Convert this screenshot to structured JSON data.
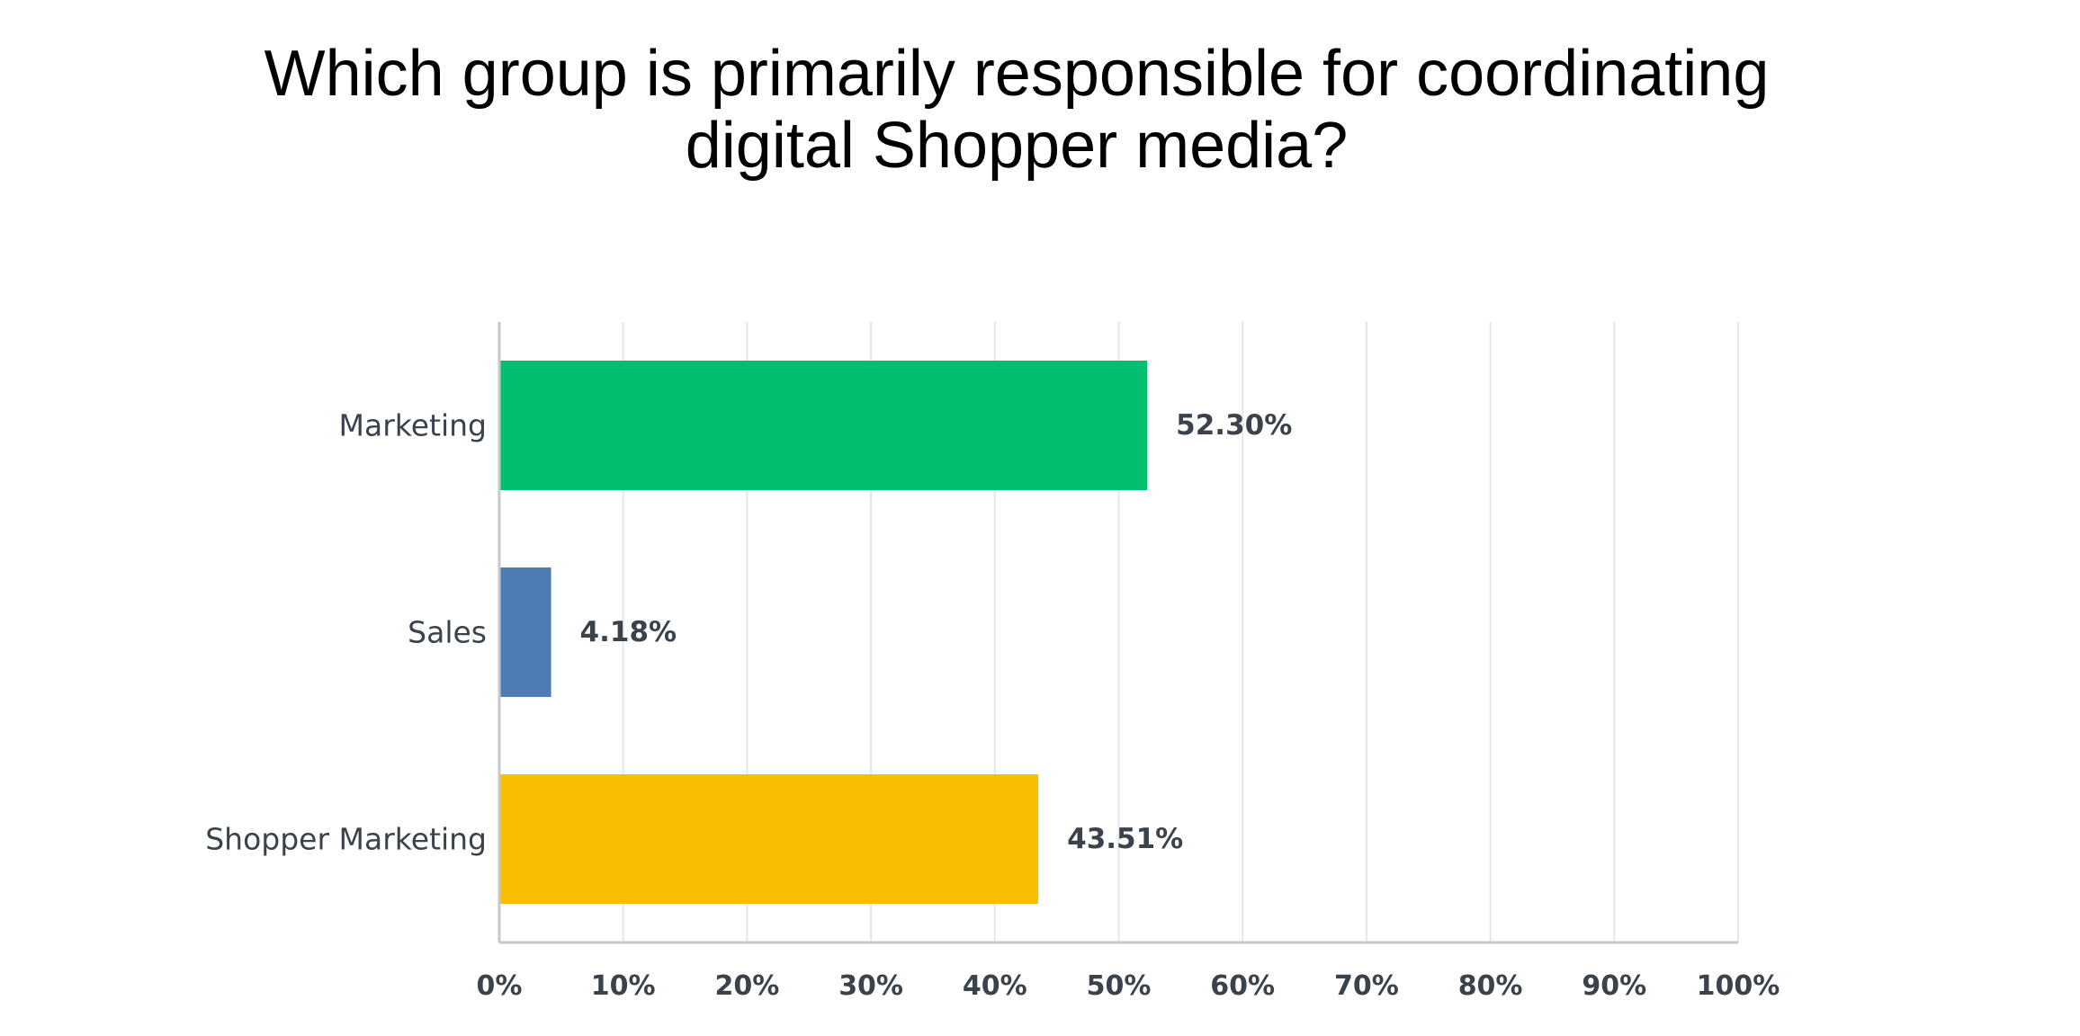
{
  "chart_data": {
    "type": "bar",
    "orientation": "horizontal",
    "title": "Which group is primarily responsible for coordinating digital Shopper media?",
    "categories": [
      "Marketing",
      "Sales",
      "Shopper Marketing"
    ],
    "values": [
      52.3,
      4.18,
      43.51
    ],
    "value_labels": [
      "52.30%",
      "4.18%",
      "43.51%"
    ],
    "colors": [
      "#00bf6f",
      "#507cb6",
      "#f8be00"
    ],
    "xlim": [
      0,
      100
    ],
    "x_ticks": [
      0,
      10,
      20,
      30,
      40,
      50,
      60,
      70,
      80,
      90,
      100
    ],
    "x_tick_labels": [
      "0%",
      "10%",
      "20%",
      "30%",
      "40%",
      "50%",
      "60%",
      "70%",
      "80%",
      "90%",
      "100%"
    ],
    "xlabel": "",
    "ylabel": "",
    "grid": true,
    "legend": false
  }
}
